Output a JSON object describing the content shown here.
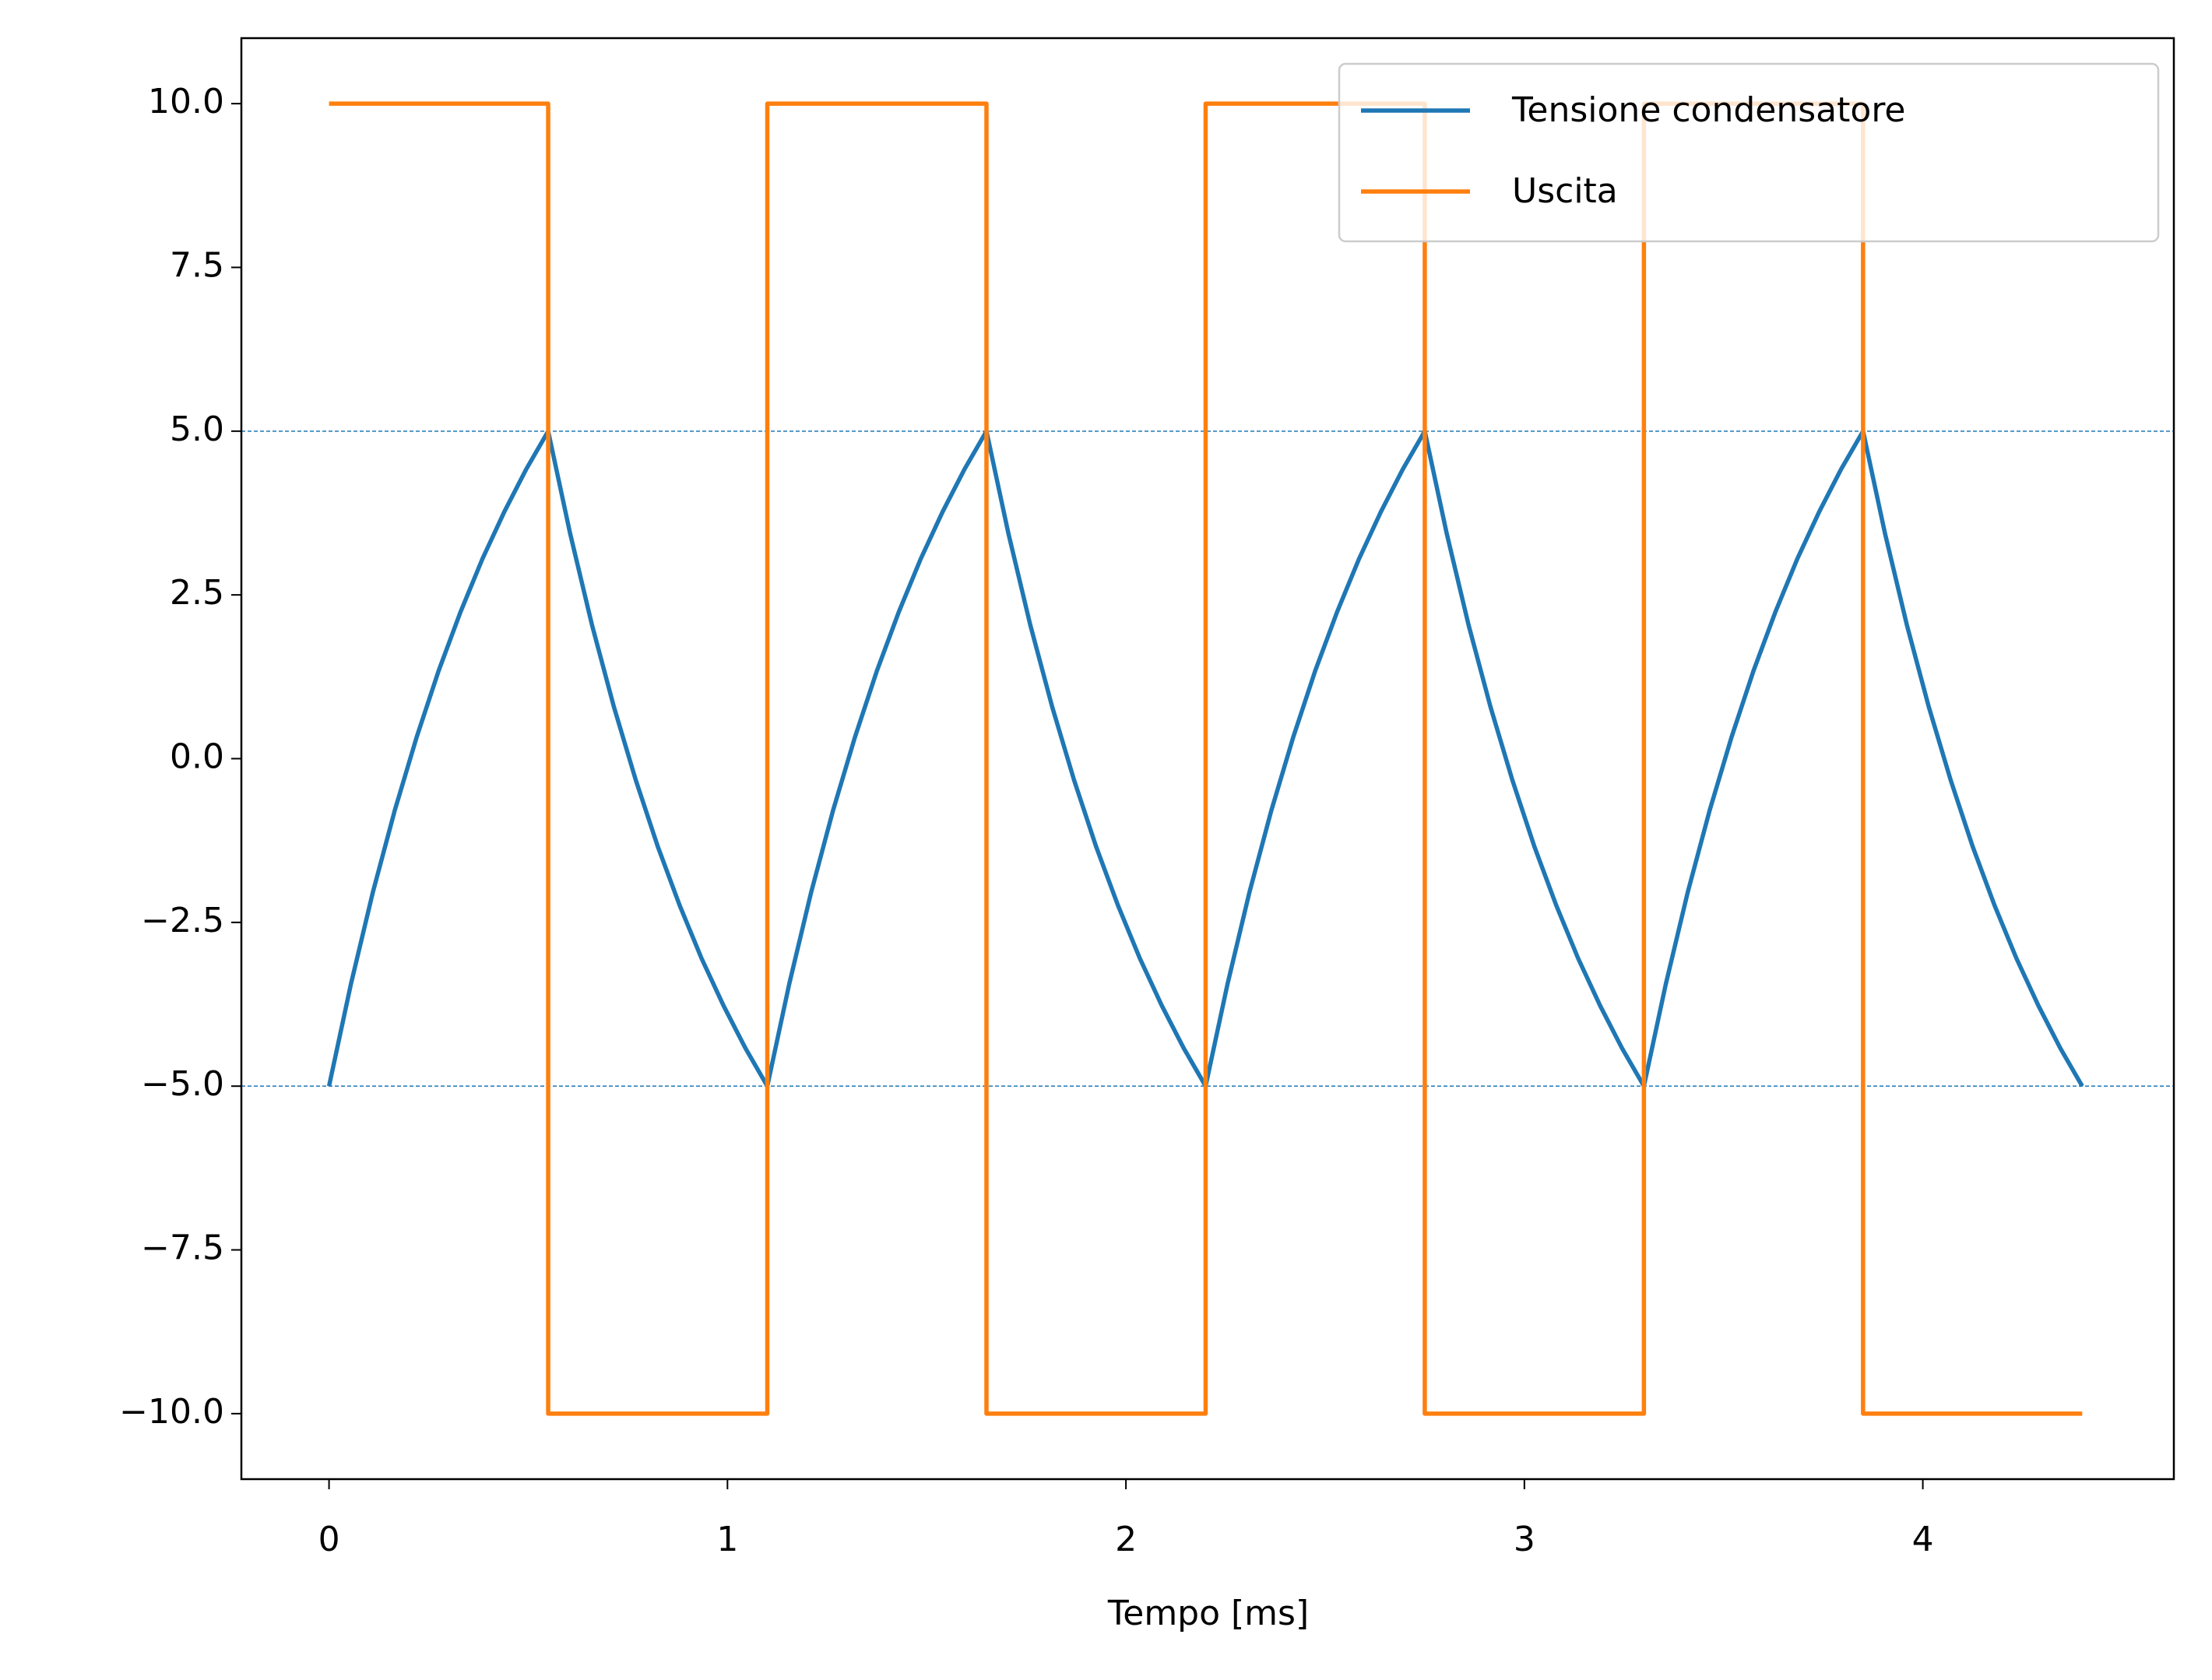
{
  "chart_data": {
    "type": "line",
    "x_label": "Tempo [ms]",
    "xlim": [
      -0.22,
      4.63
    ],
    "ylim": [
      -11,
      11
    ],
    "xticks": [
      0,
      1,
      2,
      3,
      4
    ],
    "yticks": [
      {
        "value": 10,
        "label": "10.0"
      },
      {
        "value": 7.5,
        "label": "7.5"
      },
      {
        "value": 5,
        "label": "5.0"
      },
      {
        "value": 2.5,
        "label": "2.5"
      },
      {
        "value": 0,
        "label": "0.0"
      },
      {
        "value": -2.5,
        "label": "−2.5"
      },
      {
        "value": -5,
        "label": "−5.0"
      },
      {
        "value": -7.5,
        "label": "−7.5"
      },
      {
        "value": -10,
        "label": "−10.0"
      }
    ],
    "hlines": [
      5,
      -5
    ],
    "hline_color": "#1f77b4",
    "legend": "upper right",
    "series": [
      {
        "name": "Tensione condensatore",
        "color": "#1f77b4",
        "x": [
          0,
          0.055,
          0.11,
          0.165,
          0.22,
          0.275,
          0.33,
          0.385,
          0.44,
          0.495,
          0.55,
          0.605,
          0.66,
          0.715,
          0.77,
          0.825,
          0.88,
          0.935,
          0.99,
          1.045,
          1.1,
          1.155,
          1.21,
          1.265,
          1.32,
          1.375,
          1.43,
          1.485,
          1.54,
          1.595,
          1.65,
          1.705,
          1.76,
          1.815,
          1.87,
          1.925,
          1.98,
          2.035,
          2.09,
          2.145,
          2.2,
          2.255,
          2.31,
          2.365,
          2.42,
          2.475,
          2.53,
          2.585,
          2.64,
          2.695,
          2.75,
          2.805,
          2.86,
          2.915,
          2.97,
          3.025,
          3.08,
          3.135,
          3.19,
          3.245,
          3.3,
          3.355,
          3.41,
          3.465,
          3.52,
          3.575,
          3.63,
          3.685,
          3.74,
          3.795,
          3.85,
          3.905,
          3.96,
          4.015,
          4.07,
          4.125,
          4.18,
          4.235,
          4.29,
          4.345,
          4.4
        ],
        "values": [
          -5,
          -3.44,
          -2.04,
          -0.79,
          0.33,
          1.34,
          2.24,
          3.05,
          3.77,
          4.42,
          5,
          3.44,
          2.04,
          0.79,
          -0.33,
          -1.34,
          -2.24,
          -3.05,
          -3.77,
          -4.42,
          -5,
          -3.44,
          -2.04,
          -0.79,
          0.33,
          1.34,
          2.24,
          3.05,
          3.77,
          4.42,
          5,
          3.44,
          2.04,
          0.79,
          -0.33,
          -1.34,
          -2.24,
          -3.05,
          -3.77,
          -4.42,
          -5,
          -3.44,
          -2.04,
          -0.79,
          0.33,
          1.34,
          2.24,
          3.05,
          3.77,
          4.42,
          5,
          3.44,
          2.04,
          0.79,
          -0.33,
          -1.34,
          -2.24,
          -3.05,
          -3.77,
          -4.42,
          -5,
          -3.44,
          -2.04,
          -0.79,
          0.33,
          1.34,
          2.24,
          3.05,
          3.77,
          4.42,
          5,
          3.44,
          2.04,
          0.79,
          -0.33,
          -1.34,
          -2.24,
          -3.05,
          -3.77,
          -4.42,
          -5
        ]
      },
      {
        "name": "Uscita",
        "color": "#ff7f0e",
        "x": [
          0,
          0.55,
          0.55,
          1.1,
          1.1,
          1.65,
          1.65,
          2.2,
          2.2,
          2.75,
          2.75,
          3.3,
          3.3,
          3.85,
          3.85,
          4.4
        ],
        "values": [
          10,
          10,
          -10,
          -10,
          10,
          10,
          -10,
          -10,
          10,
          10,
          -10,
          -10,
          10,
          10,
          -10,
          -10
        ]
      }
    ]
  }
}
